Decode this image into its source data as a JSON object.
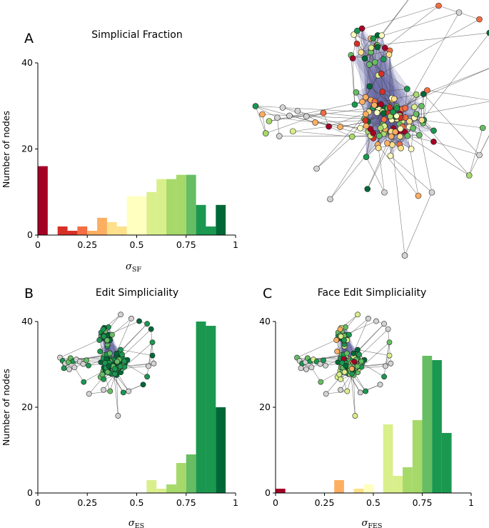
{
  "panels": {
    "A": {
      "letter": "A",
      "title": "Simplicial Fraction"
    },
    "B": {
      "letter": "B",
      "title": "Edit Simpliciality"
    },
    "C": {
      "letter": "C",
      "title": "Face Edit Simpliciality"
    }
  },
  "chart_data": [
    {
      "id": "A",
      "type": "bar",
      "title": "Simplicial Fraction",
      "xlabel": "σ",
      "xlabel_sub": "SF",
      "ylabel": "Number of nodes",
      "xlim": [
        0,
        1
      ],
      "ylim": [
        0,
        40
      ],
      "xticks": [
        0,
        0.25,
        0.5,
        0.75,
        1
      ],
      "xtick_labels": [
        "0",
        "0.25",
        "0.5",
        "0.75",
        "1"
      ],
      "yticks": [
        0,
        20,
        40
      ],
      "ytick_labels": [
        "0",
        "20",
        "40"
      ],
      "bin_width": 0.05,
      "bin_starts": [
        0,
        0.05,
        0.1,
        0.15,
        0.2,
        0.25,
        0.3,
        0.35,
        0.4,
        0.45,
        0.5,
        0.55,
        0.6,
        0.65,
        0.7,
        0.75,
        0.8,
        0.85,
        0.9,
        0.95
      ],
      "values": [
        16,
        0,
        2,
        1,
        2,
        1,
        4,
        3,
        2,
        9,
        9,
        10,
        13,
        13,
        14,
        14,
        7,
        2,
        7,
        0
      ],
      "grid": false
    },
    {
      "id": "B",
      "type": "bar",
      "title": "Edit Simpliciality",
      "xlabel": "σ",
      "xlabel_sub": "ES",
      "ylabel": "Number of nodes",
      "xlim": [
        0,
        1
      ],
      "ylim": [
        0,
        40
      ],
      "xticks": [
        0,
        0.25,
        0.5,
        0.75,
        1
      ],
      "xtick_labels": [
        "0",
        "0.25",
        "0.5",
        "0.75",
        "1"
      ],
      "yticks": [
        0,
        20,
        40
      ],
      "ytick_labels": [
        "0",
        "20",
        "40"
      ],
      "bin_width": 0.05,
      "bin_starts": [
        0.55,
        0.6,
        0.65,
        0.7,
        0.75,
        0.8,
        0.85,
        0.9,
        0.95
      ],
      "values": [
        3,
        1,
        2,
        7,
        9,
        40,
        39,
        20,
        0
      ],
      "grid": false
    },
    {
      "id": "C",
      "type": "bar",
      "title": "Face Edit Simpliciality",
      "xlabel": "σ",
      "xlabel_sub": "FES",
      "ylabel": "",
      "xlim": [
        0,
        1
      ],
      "ylim": [
        0,
        40
      ],
      "xticks": [
        0,
        0.25,
        0.5,
        0.75,
        1
      ],
      "xtick_labels": [
        "0",
        "0.25",
        "0.5",
        "0.75",
        "1"
      ],
      "yticks": [
        0,
        20,
        40
      ],
      "ytick_labels": [
        "0",
        "20",
        "40"
      ],
      "bin_width": 0.05,
      "bin_starts": [
        0,
        0.3,
        0.4,
        0.45,
        0.55,
        0.6,
        0.65,
        0.7,
        0.75,
        0.8,
        0.85,
        0.9
      ],
      "values": [
        1,
        3,
        1,
        2,
        16,
        4,
        6,
        17,
        32,
        31,
        14,
        0
      ],
      "grid": false
    }
  ],
  "colormap": [
    "#a50026",
    "#d73027",
    "#f46d43",
    "#fdae61",
    "#fee08b",
    "#ffffbf",
    "#d9ef8b",
    "#a6d96a",
    "#66bd63",
    "#1a9850",
    "#006837"
  ],
  "network_colors": {
    "hull": "#5c5f9e",
    "edge": "#444444",
    "node_outline": "#222222",
    "missing_node": "#d3d3d3"
  }
}
